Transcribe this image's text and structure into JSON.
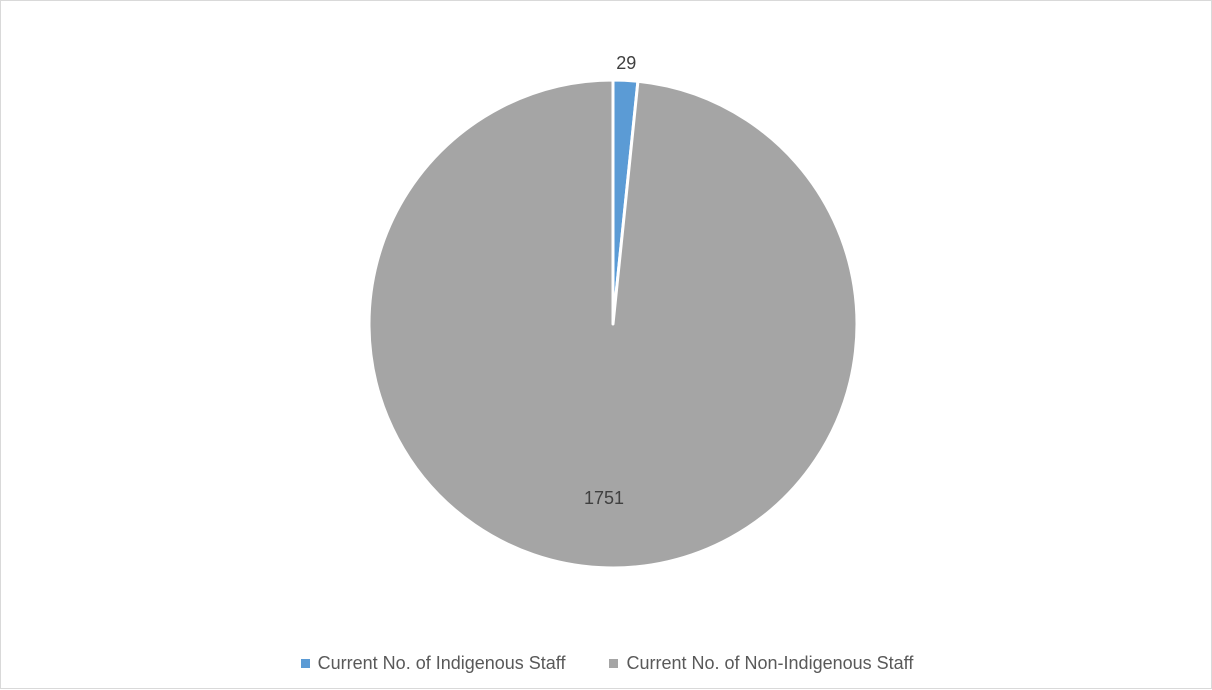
{
  "chart_data": {
    "type": "pie",
    "title": "",
    "categories": [
      "Current No. of Indigenous Staff",
      "Current No. of Non-Indigenous Staff"
    ],
    "values": [
      29,
      1751
    ],
    "data_labels": [
      "29",
      "1751"
    ],
    "colors": [
      "#5b9bd5",
      "#a5a5a5"
    ],
    "start_angle_deg": 0,
    "direction": "clockwise",
    "legend_position": "bottom"
  }
}
